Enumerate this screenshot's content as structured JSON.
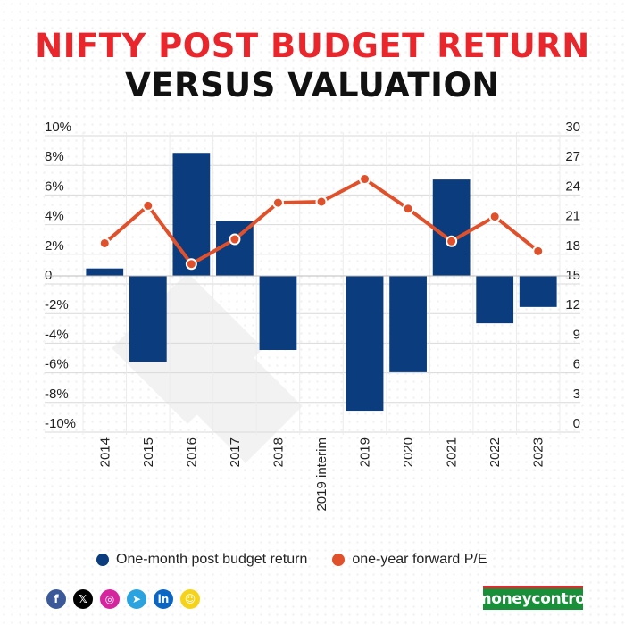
{
  "title_line1": "NIFTY POST BUDGET RETURN",
  "title_line2": "VERSUS VALUATION",
  "chart_data": {
    "type": "bar",
    "categories": [
      "2014",
      "2015",
      "2016",
      "2017",
      "2018",
      "2019 interim",
      "2019",
      "2020",
      "2021",
      "2022",
      "2023"
    ],
    "series": [
      {
        "name": "One-month post budget return",
        "type": "bar",
        "axis": "left",
        "color": "#0b3d7e",
        "values": [
          0.5,
          -5.8,
          8.3,
          3.7,
          -5.0,
          null,
          -9.1,
          -6.5,
          6.5,
          -3.2,
          -2.1
        ]
      },
      {
        "name": "one-year forward P/E",
        "type": "line",
        "axis": "right",
        "color": "#e0502a",
        "values": [
          18.3,
          22.1,
          16.2,
          18.7,
          22.4,
          22.5,
          24.8,
          21.8,
          18.5,
          21.0,
          17.5
        ]
      }
    ],
    "y_left": {
      "ylim": [
        -10,
        10
      ],
      "ticks": [
        "10%",
        "8%",
        "6%",
        "4%",
        "2%",
        "0",
        "-2%",
        "-4%",
        "-6%",
        "-8%",
        "-10%"
      ]
    },
    "y_right": {
      "ylim": [
        0,
        30
      ],
      "ticks": [
        "30",
        "27",
        "24",
        "21",
        "18",
        "15",
        "12",
        "9",
        "6",
        "3",
        "0"
      ]
    },
    "grid": true,
    "legend_position": "bottom"
  },
  "legend": {
    "items": [
      {
        "label": "One-month post budget return",
        "color": "#0b3d7e"
      },
      {
        "label": "one-year forward P/E",
        "color": "#e0502a"
      }
    ]
  },
  "social_icons": [
    {
      "name": "facebook-icon",
      "glyph": "f",
      "color": "#3b5998"
    },
    {
      "name": "x-icon",
      "glyph": "𝕏",
      "color": "#000000"
    },
    {
      "name": "instagram-icon",
      "glyph": "◎",
      "color": "#d6249f"
    },
    {
      "name": "telegram-icon",
      "glyph": "➤",
      "color": "#2aa3df"
    },
    {
      "name": "linkedin-icon",
      "glyph": "in",
      "color": "#0a66c2"
    },
    {
      "name": "snapchat-icon",
      "glyph": "☺",
      "color": "#f5d31a"
    }
  ],
  "brand": "moneycontrol"
}
